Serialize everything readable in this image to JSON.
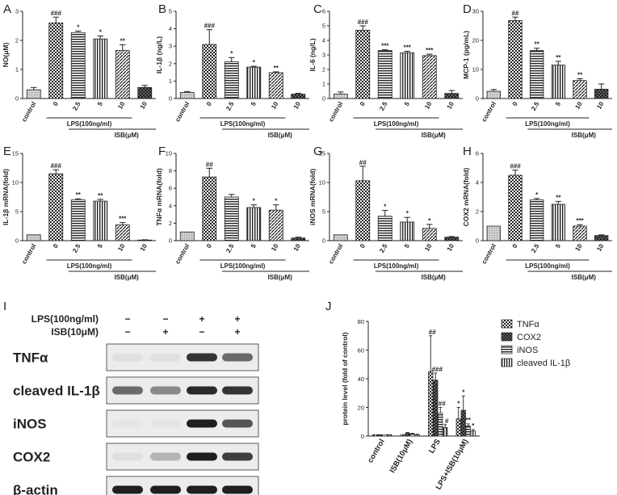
{
  "panel_letters": [
    "A",
    "B",
    "C",
    "D",
    "E",
    "F",
    "G",
    "H",
    "I",
    "J"
  ],
  "chart_data": [
    {
      "panel": "A",
      "type": "bar",
      "categories": [
        "control",
        "0",
        "2.5",
        "5",
        "10",
        "10"
      ],
      "values": [
        0.3,
        2.6,
        2.27,
        2.05,
        1.65,
        0.38
      ],
      "errors": [
        0.08,
        0.2,
        0.05,
        0.1,
        0.2,
        0.07
      ],
      "sig": [
        "",
        "###",
        "*",
        "*",
        "**",
        ""
      ],
      "ylabel": "NO(μM)",
      "ylim": [
        0,
        3
      ],
      "yticks": [
        "0",
        "1",
        "2",
        "3"
      ],
      "lps_label": "LPS(100ng/ml)",
      "isb_label": "ISB(μM)"
    },
    {
      "panel": "B",
      "type": "bar",
      "categories": [
        "control",
        "0",
        "2.5",
        "5",
        "10",
        "10"
      ],
      "values": [
        0.35,
        3.1,
        2.1,
        1.8,
        1.48,
        0.25
      ],
      "errors": [
        0.05,
        0.85,
        0.25,
        0.05,
        0.05,
        0.05
      ],
      "sig": [
        "",
        "###",
        "*",
        "*",
        "**",
        ""
      ],
      "ylabel": "IL-1β (ng/L)",
      "ylim": [
        0,
        5
      ],
      "yticks": [
        "0",
        "1",
        "2",
        "3",
        "4",
        "5"
      ],
      "lps_label": "LPS(100ng/ml)",
      "isb_label": "ISB(μM)"
    },
    {
      "panel": "C",
      "type": "bar",
      "categories": [
        "control",
        "0",
        "2.5",
        "5",
        "10",
        "10"
      ],
      "values": [
        0.3,
        4.7,
        3.3,
        3.15,
        2.95,
        0.35
      ],
      "errors": [
        0.15,
        0.3,
        0.05,
        0.1,
        0.1,
        0.2
      ],
      "sig": [
        "",
        "###",
        "***",
        "***",
        "***",
        ""
      ],
      "ylabel": "IL-6 (ng/L)",
      "ylim": [
        0,
        6
      ],
      "yticks": [
        "0",
        "1",
        "2",
        "3",
        "4",
        "5",
        "6"
      ],
      "lps_label": "LPS(100ng/ml)",
      "isb_label": "ISB(μM)"
    },
    {
      "panel": "D",
      "type": "bar",
      "categories": [
        "control",
        "0",
        "2.5",
        "5",
        "10",
        "10"
      ],
      "values": [
        2.5,
        26.8,
        16.5,
        11.5,
        6.2,
        3.2
      ],
      "errors": [
        0.6,
        1.2,
        0.8,
        1.3,
        0.6,
        1.8
      ],
      "sig": [
        "",
        "##",
        "**",
        "**",
        "**",
        ""
      ],
      "ylabel": "MCP-1 (pg/mL)",
      "ylim": [
        0,
        30
      ],
      "yticks": [
        "0",
        "10",
        "20",
        "30"
      ],
      "lps_label": "LPS(100ng/ml)",
      "isb_label": "ISB(μM)"
    },
    {
      "panel": "E",
      "type": "bar",
      "categories": [
        "control",
        "0",
        "2.5",
        "5",
        "10",
        "10"
      ],
      "values": [
        1.0,
        11.5,
        7.0,
        6.8,
        2.7,
        0.1
      ],
      "errors": [
        0.0,
        0.7,
        0.2,
        0.3,
        0.4,
        0.05
      ],
      "sig": [
        "",
        "###",
        "**",
        "**",
        "***",
        ""
      ],
      "ylabel": "IL-1β mRNA(fold)",
      "ylim": [
        0,
        15
      ],
      "yticks": [
        "0",
        "5",
        "10",
        "15"
      ],
      "lps_label": "LPS(100ng/ml)",
      "isb_label": "ISB(μM)"
    },
    {
      "panel": "F",
      "type": "bar",
      "categories": [
        "control",
        "0",
        "2.5",
        "5",
        "10",
        "10"
      ],
      "values": [
        1.0,
        7.3,
        5.0,
        3.8,
        3.5,
        0.3
      ],
      "errors": [
        0.0,
        1.0,
        0.3,
        0.3,
        0.6,
        0.1
      ],
      "sig": [
        "",
        "##",
        "",
        "*",
        "*",
        ""
      ],
      "ylabel": "TNFα mRNA(fold)",
      "ylim": [
        0,
        10
      ],
      "yticks": [
        "0",
        "2",
        "4",
        "6",
        "8",
        "10"
      ],
      "lps_label": "LPS(100ng/ml)",
      "isb_label": "ISB(μM)"
    },
    {
      "panel": "G",
      "type": "bar",
      "categories": [
        "control",
        "0",
        "2.5",
        "5",
        "10",
        "10"
      ],
      "values": [
        1.0,
        10.3,
        4.2,
        3.2,
        2.1,
        0.6
      ],
      "errors": [
        0.0,
        2.5,
        1.0,
        0.8,
        0.7,
        0.1
      ],
      "sig": [
        "",
        "##",
        "*",
        "*",
        "*",
        ""
      ],
      "ylabel": "iNOS mRNA(fold)",
      "ylim": [
        0,
        15
      ],
      "yticks": [
        "0",
        "5",
        "10",
        "15"
      ],
      "lps_label": "LPS(100ng/ml)",
      "isb_label": "ISB(μM)"
    },
    {
      "panel": "H",
      "type": "bar",
      "categories": [
        "control",
        "0",
        "2.5",
        "5",
        "10",
        "10"
      ],
      "values": [
        1.0,
        4.5,
        2.8,
        2.5,
        1.0,
        0.35
      ],
      "errors": [
        0.0,
        0.35,
        0.1,
        0.2,
        0.1,
        0.05
      ],
      "sig": [
        "",
        "###",
        "*",
        "**",
        "***",
        ""
      ],
      "ylabel": "COX2 mRNA(fold)",
      "ylim": [
        0,
        6
      ],
      "yticks": [
        "0",
        "2",
        "4",
        "6"
      ],
      "lps_label": "LPS(100ng/ml)",
      "isb_label": "ISB(μM)"
    },
    {
      "panel": "J",
      "type": "bar",
      "categories": [
        "control",
        "ISB(10μM)",
        "LPS",
        "LPS+ISB(10μM)"
      ],
      "series": [
        {
          "name": "TNFα",
          "values": [
            1,
            1,
            45,
            12
          ],
          "errors": [
            0,
            0,
            25,
            8
          ],
          "sig": [
            "",
            "",
            "##",
            "*"
          ]
        },
        {
          "name": "COX2",
          "values": [
            1,
            2,
            39,
            18
          ],
          "errors": [
            0,
            0.5,
            5,
            10
          ],
          "sig": [
            "",
            "",
            "###",
            "*"
          ]
        },
        {
          "name": "iNOS",
          "values": [
            1,
            1.5,
            16,
            7
          ],
          "errors": [
            0,
            0.5,
            4,
            1.5
          ],
          "sig": [
            "",
            "",
            "##",
            "**"
          ]
        },
        {
          "name": "cleaved IL-1β",
          "values": [
            1,
            1,
            6,
            3.5
          ],
          "errors": [
            0,
            0.3,
            2,
            1
          ],
          "sig": [
            "",
            "",
            "#",
            "*"
          ]
        }
      ],
      "ylabel": "protein level (fold of control)",
      "ylim": [
        0,
        80
      ],
      "yticks": [
        "0",
        "20",
        "40",
        "60",
        "80"
      ],
      "legend_position": "top-right"
    }
  ],
  "western_blot": {
    "condition_rows": [
      {
        "label": "LPS(100ng/ml)",
        "marks": [
          "−",
          "−",
          "+",
          "+"
        ]
      },
      {
        "label": "ISB(10μM)",
        "marks": [
          "−",
          "+",
          "−",
          "+"
        ]
      }
    ],
    "bands": [
      {
        "label": "TNFα",
        "intensity": [
          0.05,
          0.05,
          0.85,
          0.6
        ]
      },
      {
        "label": "cleaved IL-1β",
        "intensity": [
          0.6,
          0.45,
          0.9,
          0.85
        ]
      },
      {
        "label": "iNOS",
        "intensity": [
          0.03,
          0.03,
          0.95,
          0.7
        ]
      },
      {
        "label": "COX2",
        "intensity": [
          0.05,
          0.25,
          0.95,
          0.8
        ]
      },
      {
        "label": "β-actin",
        "intensity": [
          0.95,
          0.95,
          0.95,
          0.95
        ]
      }
    ]
  }
}
